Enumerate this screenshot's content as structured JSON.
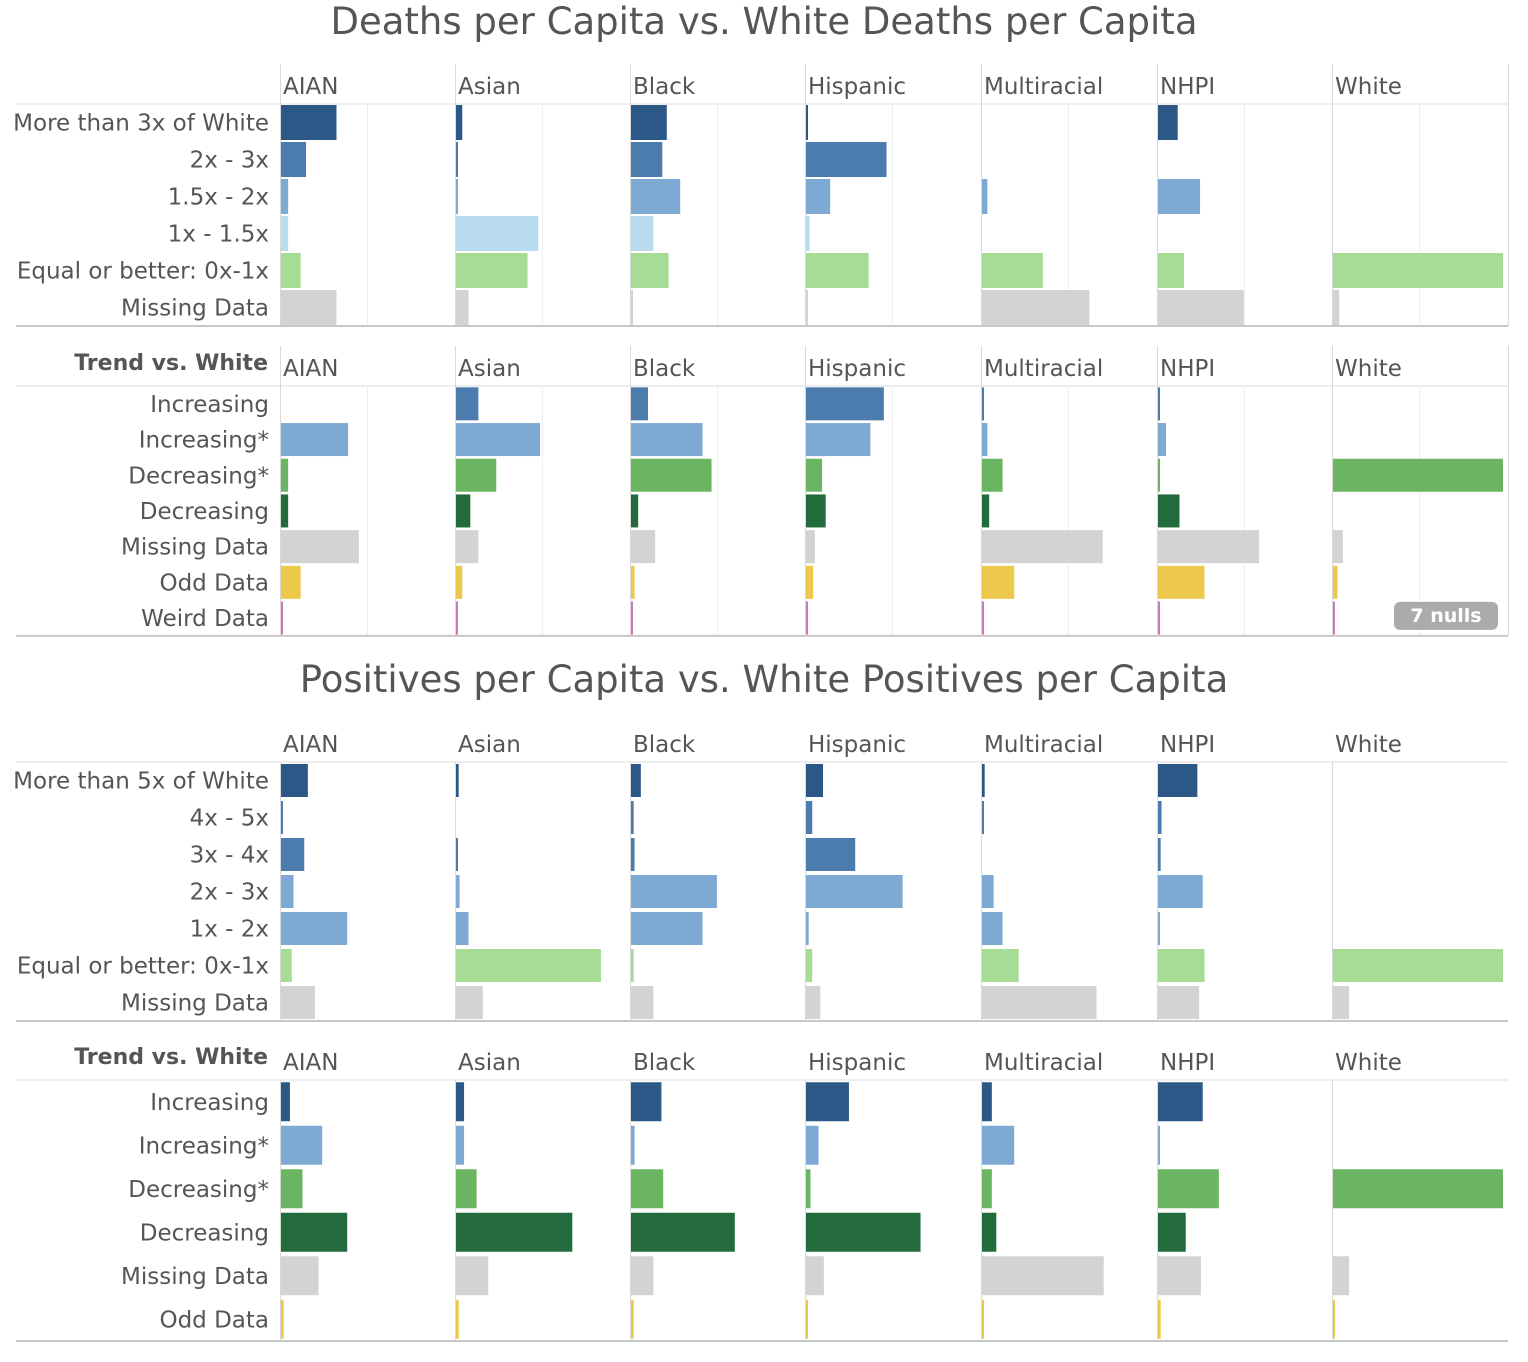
{
  "deaths_title": "Deaths per Capita vs. White Deaths per Capita",
  "positives_title": "Positives per Capita vs. White Positives per Capita",
  "colors": {
    "dark_blue": "#2b5886",
    "mid_blue": "#4c7cad",
    "light_blue": "#7ea9d2",
    "pale_blue": "#b9dcf0",
    "light_green": "#a6dc94",
    "green": "#6bb562",
    "dark_green": "#236a3d",
    "gray": "#d3d3d3",
    "yellow": "#ecc94b",
    "pink": "#c97ab5",
    "badge": "#ababab"
  },
  "chart_data": [
    {
      "type": "bar",
      "orientation": "horizontal",
      "row_header": "",
      "columns": [
        "AIAN",
        "Asian",
        "Black",
        "Hispanic",
        "Multiracial",
        "NHPI",
        "White"
      ],
      "categories": [
        "More than 3x of White",
        "2x - 3x",
        "1.5x - 2x",
        "1x - 1.5x",
        "Equal or better: 0x-1x",
        "Missing Data"
      ],
      "category_colors": [
        "dark_blue",
        "mid_blue",
        "light_blue",
        "pale_blue",
        "light_green",
        "gray"
      ],
      "xlim": [
        0,
        19
      ],
      "gridlines": [
        10
      ],
      "grid": true,
      "values": [
        [
          6.2,
          2.8,
          0.8,
          0.8,
          2.2,
          6.2
        ],
        [
          0.7,
          0.2,
          0.2,
          9.2,
          8,
          1.4
        ],
        [
          4,
          3.5,
          5.5,
          2.5,
          4.2,
          0.2
        ],
        [
          0.2,
          9,
          2.7,
          0.4,
          7,
          0.2
        ],
        [
          0,
          0,
          0.6,
          0,
          6.8,
          12
        ],
        [
          2.2,
          0,
          4.7,
          0,
          2.9,
          9.6
        ],
        [
          0,
          0,
          0,
          0,
          19,
          0.7
        ]
      ]
    },
    {
      "type": "bar",
      "orientation": "horizontal",
      "row_header": "Trend vs. White",
      "columns": [
        "AIAN",
        "Asian",
        "Black",
        "Hispanic",
        "Multiracial",
        "NHPI",
        "White"
      ],
      "categories": [
        "Increasing",
        "Increasing*",
        "Decreasing*",
        "Decreasing",
        "Missing Data",
        "Odd Data",
        "Weird Data"
      ],
      "category_colors": [
        "mid_blue",
        "light_blue",
        "green",
        "dark_green",
        "gray",
        "yellow",
        "pink"
      ],
      "xlim": [
        0,
        19
      ],
      "gridlines": [
        10
      ],
      "grid": true,
      "values": [
        [
          0,
          7.5,
          0.8,
          0.8,
          8.7,
          2.2,
          0.1
        ],
        [
          2.5,
          9.4,
          4.5,
          1.6,
          2.5,
          0.7,
          0.2
        ],
        [
          1.9,
          8,
          9,
          0.8,
          2.7,
          0.4,
          0.2
        ],
        [
          8.7,
          7.2,
          1.8,
          2.2,
          1,
          0.8,
          0.2
        ],
        [
          0.2,
          0.6,
          2.3,
          0.8,
          13.5,
          3.6,
          0.1
        ],
        [
          0.2,
          0.9,
          0.2,
          2.4,
          11.3,
          5.2,
          0.1
        ],
        [
          0,
          0,
          19,
          0,
          1.1,
          0.5,
          0.2
        ]
      ],
      "badge": "7 nulls"
    },
    {
      "type": "bar",
      "orientation": "horizontal",
      "row_header": "",
      "columns": [
        "AIAN",
        "Asian",
        "Black",
        "Hispanic",
        "Multiracial",
        "NHPI",
        "White"
      ],
      "categories": [
        "More than 5x of White",
        "4x - 5x",
        "3x - 4x",
        "2x - 3x",
        "1x - 2x",
        "Equal or better: 0x-1x",
        "Missing Data"
      ],
      "category_colors": [
        "dark_blue",
        "mid_blue",
        "mid_blue",
        "light_blue",
        "light_blue",
        "light_green",
        "gray"
      ],
      "xlim": [
        0,
        19
      ],
      "gridlines": [],
      "grid": false,
      "values": [
        [
          3,
          0.2,
          2.6,
          1.4,
          7.4,
          1.2,
          3.8
        ],
        [
          0.3,
          0,
          0.2,
          0.4,
          1.4,
          16.2,
          3
        ],
        [
          1.1,
          0.3,
          0.4,
          9.6,
          8,
          0.3,
          2.5
        ],
        [
          1.9,
          0.7,
          5.5,
          10.8,
          0.3,
          0.7,
          1.6
        ],
        [
          0.3,
          0.2,
          0,
          1.3,
          2.3,
          4.1,
          12.8
        ],
        [
          4.4,
          0.4,
          0.3,
          5,
          0.2,
          5.2,
          4.6
        ],
        [
          0,
          0,
          0,
          0,
          0,
          19,
          1.8
        ]
      ]
    },
    {
      "type": "bar",
      "orientation": "horizontal",
      "row_header": "Trend vs. White",
      "columns": [
        "AIAN",
        "Asian",
        "Black",
        "Hispanic",
        "Multiracial",
        "NHPI",
        "White"
      ],
      "categories": [
        "Increasing",
        "Increasing*",
        "Decreasing*",
        "Decreasing",
        "Missing Data",
        "Odd Data"
      ],
      "category_colors": [
        "dark_blue",
        "light_blue",
        "green",
        "dark_green",
        "gray",
        "yellow"
      ],
      "xlim": [
        0,
        19
      ],
      "gridlines": [],
      "grid": false,
      "values": [
        [
          1,
          4.6,
          2.4,
          7.4,
          4.2,
          0.3
        ],
        [
          0.9,
          0.9,
          2.3,
          13,
          3.6,
          0.3
        ],
        [
          3.4,
          0.4,
          3.6,
          11.6,
          2.5,
          0.3
        ],
        [
          4.8,
          1.4,
          0.5,
          12.8,
          2,
          0.2
        ],
        [
          1.1,
          3.6,
          1.1,
          1.6,
          13.6,
          0.2
        ],
        [
          5,
          0.2,
          6.8,
          3.1,
          4.8,
          0.3
        ],
        [
          0,
          0,
          19,
          0,
          1.8,
          0.2
        ]
      ]
    }
  ]
}
